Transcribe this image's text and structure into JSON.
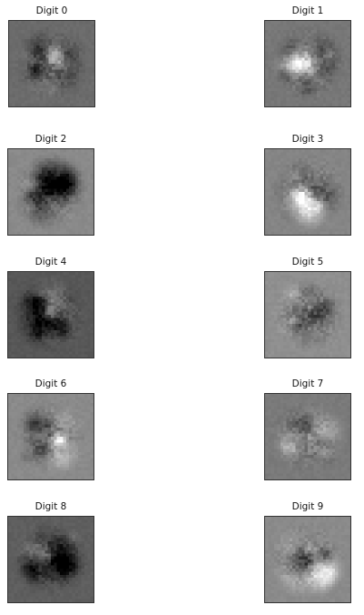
{
  "figure": {
    "panels": [
      {
        "title": "Digit 0",
        "base_gray": "#6b6b6b",
        "seed": 11
      },
      {
        "title": "Digit 1",
        "base_gray": "#777777",
        "seed": 23
      },
      {
        "title": "Digit 2",
        "base_gray": "#8a8a8a",
        "seed": 37
      },
      {
        "title": "Digit 3",
        "base_gray": "#858585",
        "seed": 41
      },
      {
        "title": "Digit 4",
        "base_gray": "#575757",
        "seed": 53
      },
      {
        "title": "Digit 5",
        "base_gray": "#8f8f8f",
        "seed": 67
      },
      {
        "title": "Digit 6",
        "base_gray": "#8a8a8a",
        "seed": 71
      },
      {
        "title": "Digit 7",
        "base_gray": "#7a7a7a",
        "seed": 89
      },
      {
        "title": "Digit 8",
        "base_gray": "#5e5e5e",
        "seed": 97
      },
      {
        "title": "Digit 9",
        "base_gray": "#8a8a8a",
        "seed": 103
      }
    ]
  }
}
